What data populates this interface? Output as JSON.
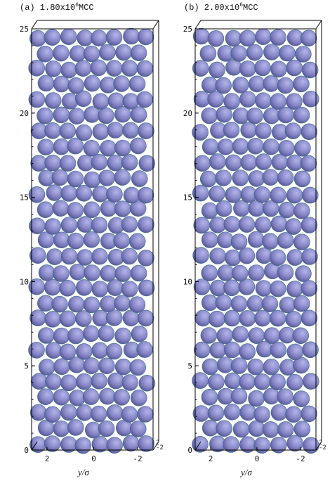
{
  "panels": [
    {
      "title_prefix": "(a) 1.80x10",
      "title_exp": "6",
      "title_suffix": "MCC",
      "xlabel": "y/σ",
      "y_ticks": [
        "0",
        "5",
        "10",
        "15",
        "20",
        "25"
      ],
      "x_ticks": [
        "2",
        "0",
        "-2"
      ],
      "depth_ticks": [
        "2",
        "-2"
      ]
    },
    {
      "title_prefix": "(b) 2.00x10",
      "title_exp": "6",
      "title_suffix": "MCC",
      "xlabel": "y/σ",
      "y_ticks": [
        "0",
        "5",
        "10",
        "15",
        "20",
        "25"
      ],
      "x_ticks": [
        "2",
        "0",
        "-2"
      ],
      "depth_ticks": [
        "2",
        "-2"
      ]
    }
  ],
  "colors": {
    "sphere_light": "#9a9ad8",
    "sphere_dark": "#4a4a86",
    "sphere_rim": "#2e8a8a"
  }
}
